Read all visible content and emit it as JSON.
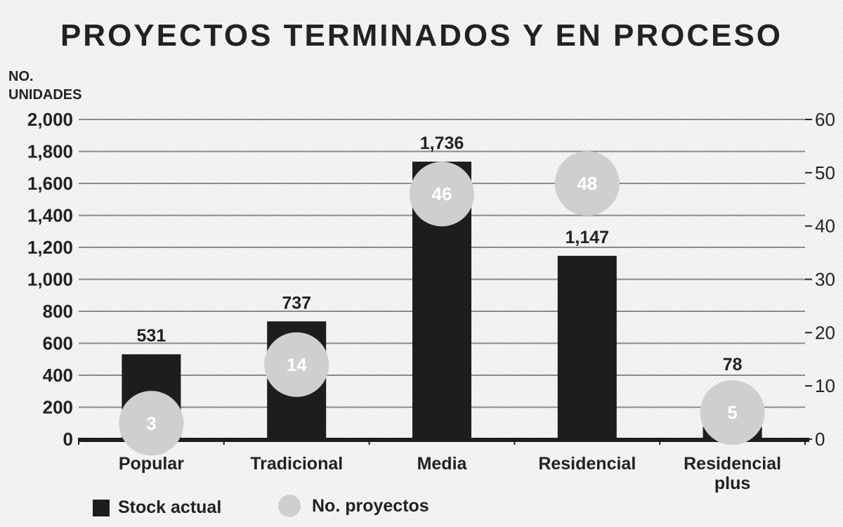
{
  "chart_data": {
    "type": "bar",
    "title": "PROYECTOS TERMINADOS Y EN PROCESO",
    "ylabel": "NO. UNIDADES",
    "categories": [
      [
        "Popular"
      ],
      [
        "Tradicional"
      ],
      [
        "Media"
      ],
      [
        "Residencial"
      ],
      [
        "Residencial",
        "plus"
      ]
    ],
    "series": [
      {
        "name": "Stock actual",
        "type": "bar",
        "axis": "left",
        "values": [
          531,
          737,
          1736,
          1147,
          78
        ],
        "labels": [
          "531",
          "737",
          "1,736",
          "1,147",
          "78"
        ],
        "color": "#1d1d1d"
      },
      {
        "name": "No. proyectos",
        "type": "bubble",
        "axis": "right",
        "values": [
          3,
          14,
          46,
          48,
          5
        ],
        "color": "#cfcfd0"
      }
    ],
    "y_left": {
      "range": [
        0,
        2000
      ],
      "ticks": [
        "0",
        "200",
        "400",
        "600",
        "800",
        "1,000",
        "1,200",
        "1,400",
        "1,600",
        "1,800",
        "2,000"
      ]
    },
    "y_right": {
      "range": [
        0,
        60
      ],
      "ticks": [
        "0",
        "10",
        "20",
        "30",
        "40",
        "50",
        "60"
      ]
    },
    "grid": true,
    "legend": "bottom-left"
  }
}
